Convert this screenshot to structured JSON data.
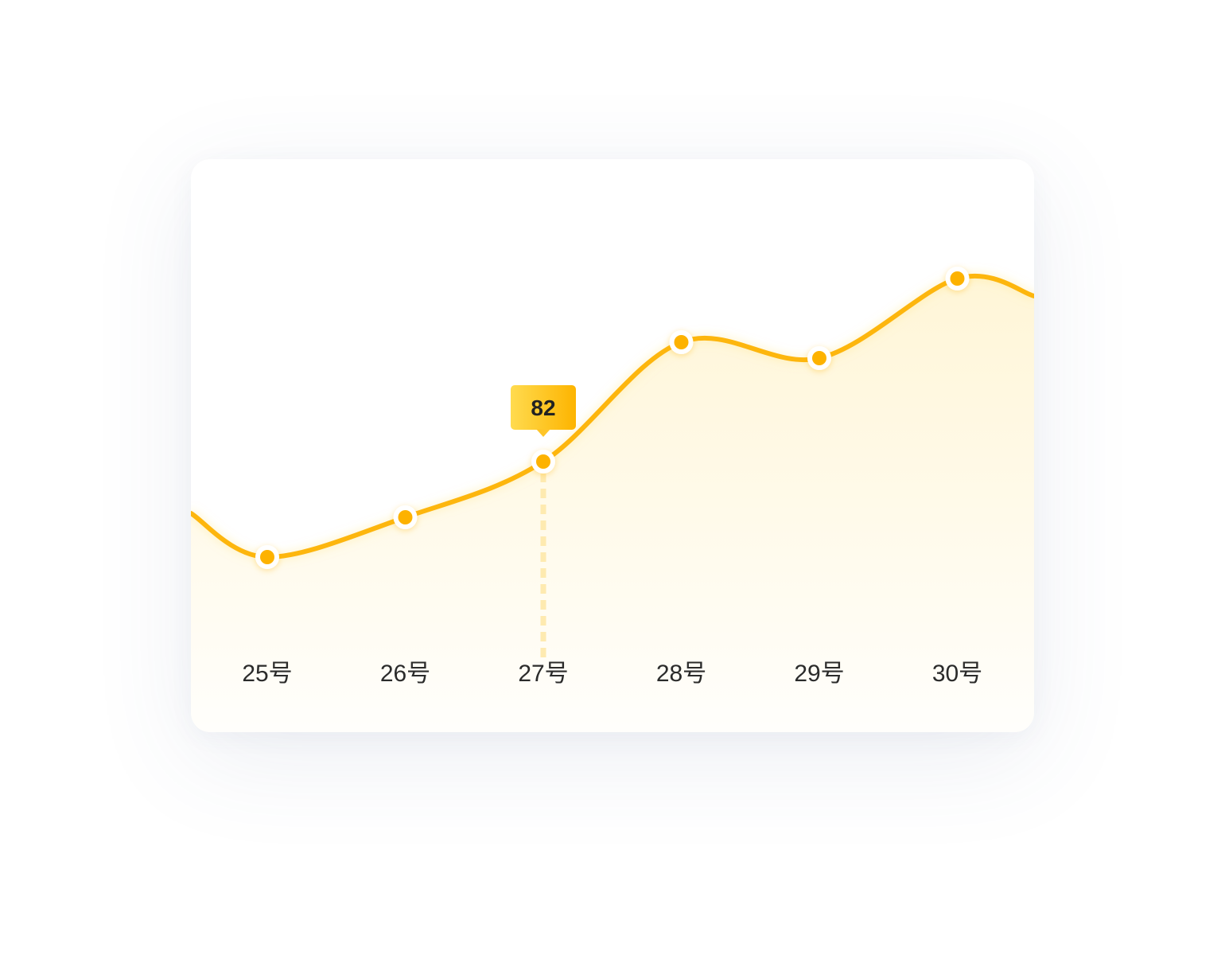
{
  "chart_data": {
    "type": "area",
    "categories": [
      "25号",
      "26号",
      "27号",
      "28号",
      "29号",
      "30号"
    ],
    "values": [
      70,
      75,
      82,
      97,
      95,
      105
    ],
    "ylim": [
      40,
      120
    ],
    "grid": false,
    "legend": "none",
    "highlight": {
      "index": 2,
      "label": "82"
    }
  },
  "colors": {
    "line": "#FDB60E",
    "point": "#FDB200",
    "point_ring": "#FFFFFF",
    "tooltip_start": "#FFDB4F",
    "tooltip_end": "#FDB400",
    "guide": "#FEEAB0",
    "fill_top": "#FFEEB6",
    "label": "#2B2B2B"
  }
}
